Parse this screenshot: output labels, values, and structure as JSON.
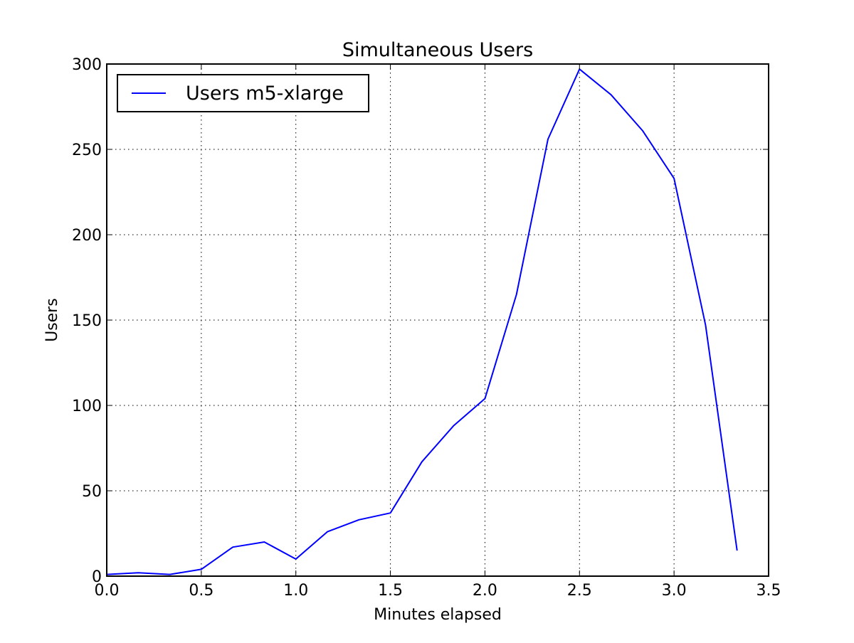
{
  "chart_data": {
    "type": "line",
    "title": "Simultaneous Users",
    "xlabel": "Minutes elapsed",
    "ylabel": "Users",
    "xlim": [
      0.0,
      3.5
    ],
    "ylim": [
      0,
      300
    ],
    "x_ticks": [
      "0.0",
      "0.5",
      "1.0",
      "1.5",
      "2.0",
      "2.5",
      "3.0",
      "3.5"
    ],
    "y_ticks": [
      "0",
      "50",
      "100",
      "150",
      "200",
      "250",
      "300"
    ],
    "grid": true,
    "legend_position": "top-left",
    "series": [
      {
        "name": "Users m5-xlarge",
        "color": "#0000ff",
        "x": [
          0.0,
          0.1667,
          0.3333,
          0.5,
          0.6667,
          0.8333,
          1.0,
          1.1667,
          1.3333,
          1.5,
          1.6667,
          1.8333,
          2.0,
          2.1667,
          2.3333,
          2.5,
          2.6667,
          2.8333,
          3.0,
          3.1667,
          3.3333
        ],
        "y": [
          1,
          2,
          1,
          4,
          17,
          20,
          10,
          26,
          33,
          37,
          67,
          88,
          104,
          165,
          256,
          297,
          282,
          261,
          233,
          147,
          15
        ]
      }
    ]
  }
}
